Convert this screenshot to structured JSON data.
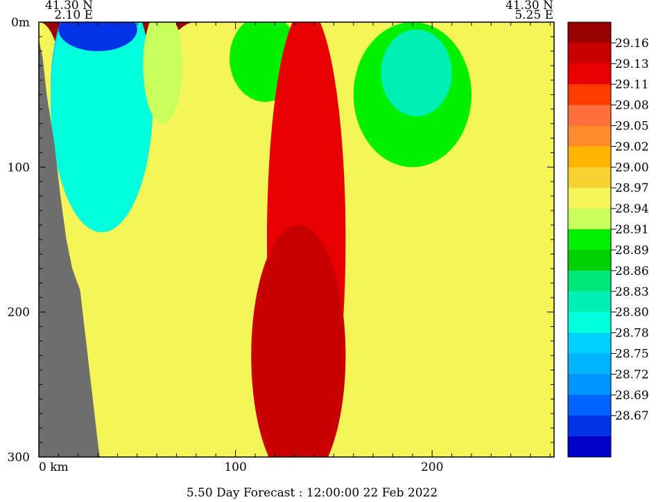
{
  "chart_data": {
    "type": "heatmap",
    "title": "",
    "footer": "5.50 Day Forecast : 12:00:00  22 Feb 2022",
    "corner_labels": {
      "left_lat": "41.30 N",
      "left_lon": "2.10 E",
      "right_lat": "41.30 N",
      "right_lon": "5.25 E"
    },
    "x_axis": {
      "range": [
        0,
        262
      ],
      "unit": "km",
      "ticks": [
        {
          "value": 0,
          "label": "0  km"
        },
        {
          "value": 100,
          "label": "100"
        },
        {
          "value": 200,
          "label": "200"
        }
      ],
      "minor_step": 10
    },
    "y_axis": {
      "range": [
        0,
        300
      ],
      "inverted": true,
      "ticks": [
        {
          "value": 0,
          "label": "0m"
        },
        {
          "value": 100,
          "label": "100"
        },
        {
          "value": 200,
          "label": "200"
        },
        {
          "value": 300,
          "label": "300"
        }
      ],
      "minor_step": 10
    },
    "colorbar": {
      "levels": [
        "29.16",
        "29.13",
        "29.11",
        "29.08",
        "29.05",
        "29.02",
        "29.00",
        "28.97",
        "28.94",
        "28.91",
        "28.89",
        "28.86",
        "28.83",
        "28.80",
        "28.78",
        "28.75",
        "28.72",
        "28.69",
        "28.67"
      ],
      "colors": [
        "#990000",
        "#c80000",
        "#e60000",
        "#ff3c00",
        "#ff6e3c",
        "#ff8c28",
        "#ffb400",
        "#f5d232",
        "#f5f55a",
        "#c8ff5a",
        "#00f000",
        "#00d200",
        "#00e678",
        "#00f0b4",
        "#00ffdc",
        "#00d2ff",
        "#00b4ff",
        "#0096ff",
        "#0064ff",
        "#0032e6",
        "#0000c8"
      ]
    },
    "terrain_color": "#6e6e6e",
    "terrain_depth": [
      {
        "x": 0,
        "depth": 12
      },
      {
        "x": 2,
        "depth": 25
      },
      {
        "x": 4,
        "depth": 50
      },
      {
        "x": 8,
        "depth": 85
      },
      {
        "x": 11,
        "depth": 120
      },
      {
        "x": 14,
        "depth": 150
      },
      {
        "x": 17,
        "depth": 170
      },
      {
        "x": 21,
        "depth": 185
      },
      {
        "x": 24,
        "depth": 220
      },
      {
        "x": 27,
        "depth": 255
      },
      {
        "x": 30,
        "depth": 290
      },
      {
        "x": 31,
        "depth": 300
      }
    ],
    "field_layers": [
      {
        "level": 0,
        "top": [
          [
            0,
            0
          ],
          [
            262,
            0
          ]
        ]
      },
      {
        "level": 1,
        "top": [
          [
            0,
            0
          ],
          [
            20,
            190
          ],
          [
            60,
            220
          ],
          [
            70,
            150
          ],
          [
            80,
            140
          ],
          [
            100,
            170
          ],
          [
            110,
            150
          ],
          [
            150,
            160
          ],
          [
            190,
            200
          ],
          [
            230,
            210
          ],
          [
            262,
            180
          ]
        ]
      },
      {
        "level": 2,
        "top": [
          [
            0,
            0
          ],
          [
            20,
            175
          ],
          [
            50,
            175
          ],
          [
            70,
            120
          ],
          [
            80,
            90
          ],
          [
            95,
            80
          ],
          [
            110,
            115
          ],
          [
            150,
            130
          ],
          [
            180,
            170
          ],
          [
            220,
            165
          ],
          [
            262,
            150
          ]
        ]
      },
      {
        "level": 3,
        "top": [
          [
            0,
            0
          ],
          [
            20,
            160
          ],
          [
            50,
            130
          ],
          [
            70,
            60
          ],
          [
            90,
            50
          ],
          [
            110,
            70
          ],
          [
            130,
            55
          ],
          [
            150,
            80
          ],
          [
            175,
            130
          ],
          [
            190,
            150
          ],
          [
            230,
            130
          ],
          [
            262,
            130
          ]
        ]
      },
      {
        "level": 4,
        "top": [
          [
            0,
            0
          ],
          [
            20,
            150
          ],
          [
            40,
            140
          ],
          [
            55,
            60
          ],
          [
            70,
            35
          ],
          [
            90,
            40
          ],
          [
            105,
            55
          ],
          [
            125,
            30
          ],
          [
            140,
            50
          ],
          [
            155,
            60
          ],
          [
            170,
            100
          ],
          [
            185,
            125
          ],
          [
            215,
            105
          ],
          [
            262,
            110
          ]
        ]
      },
      {
        "level": 5,
        "top": [
          [
            0,
            0
          ],
          [
            25,
            140
          ],
          [
            45,
            110
          ],
          [
            60,
            40
          ],
          [
            75,
            25
          ],
          [
            90,
            25
          ],
          [
            100,
            30
          ],
          [
            120,
            20
          ],
          [
            140,
            30
          ],
          [
            155,
            40
          ],
          [
            170,
            80
          ],
          [
            185,
            110
          ],
          [
            215,
            90
          ],
          [
            262,
            95
          ]
        ]
      },
      {
        "level": 6,
        "top": [
          [
            0,
            0
          ],
          [
            30,
            130
          ],
          [
            45,
            90
          ],
          [
            55,
            30
          ],
          [
            70,
            15
          ],
          [
            90,
            10
          ],
          [
            110,
            15
          ],
          [
            125,
            10
          ],
          [
            140,
            20
          ],
          [
            160,
            25
          ],
          [
            175,
            70
          ],
          [
            185,
            95
          ],
          [
            210,
            75
          ],
          [
            262,
            80
          ]
        ]
      },
      {
        "level": 7,
        "top": [
          [
            0,
            0
          ],
          [
            30,
            120
          ],
          [
            50,
            50
          ],
          [
            60,
            15
          ],
          [
            75,
            5
          ],
          [
            95,
            5
          ],
          [
            110,
            0
          ],
          [
            140,
            5
          ],
          [
            160,
            15
          ],
          [
            175,
            55
          ],
          [
            185,
            80
          ],
          [
            205,
            60
          ],
          [
            262,
            65
          ]
        ]
      },
      {
        "level": 8,
        "top": [
          [
            0,
            0
          ],
          [
            30,
            100
          ],
          [
            50,
            30
          ],
          [
            65,
            8
          ],
          [
            80,
            0
          ],
          [
            100,
            0
          ],
          [
            262,
            0
          ]
        ]
      }
    ],
    "blobs": [
      {
        "level": 16,
        "cx": 28,
        "cy": 30,
        "rx": 20,
        "ry": 55
      },
      {
        "level": 15,
        "cx": 30,
        "cy": 45,
        "rx": 24,
        "ry": 75
      },
      {
        "level": 14,
        "cx": 32,
        "cy": 55,
        "rx": 26,
        "ry": 90
      },
      {
        "level": 19,
        "cx": 30,
        "cy": 5,
        "rx": 20,
        "ry": 15
      },
      {
        "level": 10,
        "cx": 190,
        "cy": 50,
        "rx": 30,
        "ry": 50
      },
      {
        "level": 13,
        "cx": 192,
        "cy": 35,
        "rx": 18,
        "ry": 30
      },
      {
        "level": 9,
        "cx": 63,
        "cy": 30,
        "rx": 10,
        "ry": 40
      },
      {
        "level": 10,
        "cx": 115,
        "cy": 25,
        "rx": 18,
        "ry": 30
      },
      {
        "level": 2,
        "cx": 136,
        "cy": 150,
        "rx": 20,
        "ry": 160
      },
      {
        "level": 1,
        "cx": 132,
        "cy": 230,
        "rx": 24,
        "ry": 90
      }
    ]
  }
}
